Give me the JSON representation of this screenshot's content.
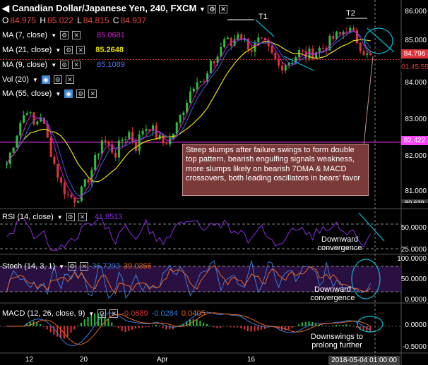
{
  "header": {
    "title": "Canadian Dollar/Japanese Yen, 240, FXCM",
    "open_label": "O",
    "open": "84.975",
    "high_label": "H",
    "high": "85.022",
    "low_label": "L",
    "low": "84.815",
    "close_label": "C",
    "close": "84.937"
  },
  "indicators": [
    {
      "label": "MA (7, close)",
      "value": "85.0681",
      "color": "#d21bd2"
    },
    {
      "label": "MA (21, close)",
      "value": "85.2648",
      "color": "#e8e000"
    },
    {
      "label": "MA (9, close)",
      "value": "85.1089",
      "color": "#3b5fd9"
    },
    {
      "label": "Vol (20)",
      "value": ""
    },
    {
      "label": "MA (55, close)",
      "value": ""
    }
  ],
  "annotations": {
    "t1": "T1",
    "t2": "T2",
    "note": "Steep slumps after failure swings to form double top pattern, bearish engulfing signals weakness, more slumps likely on bearish 7DMA & MACD crossovers, both leading oscillators in bears' favor",
    "rsi_note": "Downward convergence",
    "stoch_note": "Downward convergence",
    "macd_note": "Downswings to prolong further"
  },
  "price_axis": {
    "ticks": [
      "86.000",
      "85.000",
      "84.000",
      "83.000",
      "82.000",
      "81.000"
    ],
    "last_price": "84.796",
    "countdown": "01:45:55",
    "level_price": "82.422",
    "bottom_partial": "80.639"
  },
  "rsi": {
    "label": "RSI (14, close)",
    "value": "41.8513",
    "ticks": [
      "50.0000",
      "25.0000"
    ]
  },
  "stoch": {
    "label": "Stoch (14, 3, 1)",
    "value_k": "36.7293",
    "value_d": "39.0366",
    "ticks": [
      "100.0000",
      "50.0000",
      "0.0000"
    ]
  },
  "macd": {
    "label": "MACD (12, 26, close, 9)",
    "value_1": "-0.0689",
    "value_2": "-0.0284",
    "value_3": "0.0405",
    "ticks": [
      "0.0000",
      "-0.5000"
    ]
  },
  "x_axis": {
    "ticks": [
      "12",
      "20",
      "Apr",
      "16"
    ],
    "cursor_time": "2018-05-04 01:00:00"
  },
  "colors": {
    "up": "#2bbf3e",
    "down": "#e0343a",
    "ma7": "#d21bd2",
    "ma21": "#e8e000",
    "ma9": "#3b5fd9",
    "rsi": "#8a2be2",
    "stoch_k": "#3b7bd9",
    "stoch_d": "#e8661a",
    "macd": "#3b7bd9",
    "signal": "#e8661a",
    "level": "#ff40ff",
    "arrow": "#00bcd4"
  },
  "chart_data": {
    "type": "line",
    "title": "Canadian Dollar/Japanese Yen, 240, FXCM",
    "x_ticks": [
      "12",
      "20",
      "Apr",
      "16"
    ],
    "price_ticks": [
      86,
      85,
      84,
      83,
      82,
      81
    ],
    "ylim": [
      80.64,
      86.3
    ],
    "level_line": 82.422,
    "last_price": 84.796,
    "close_path": [
      81.8,
      82.4,
      83.0,
      83.4,
      82.9,
      83.2,
      82.5,
      81.8,
      81.2,
      80.9,
      80.8,
      81.0,
      81.4,
      81.9,
      82.5,
      82.3,
      82.1,
      82.5,
      82.7,
      82.3,
      82.8,
      82.9,
      82.6,
      82.4,
      82.5,
      82.9,
      83.4,
      83.9,
      84.3,
      84.1,
      84.6,
      84.9,
      85.4,
      85.2,
      85.6,
      85.3,
      85.1,
      85.3,
      85.2,
      84.9,
      84.6,
      84.7,
      84.8,
      85.0,
      84.9,
      85.0,
      85.1,
      85.2,
      85.4,
      85.5,
      85.7,
      85.5,
      85.2,
      84.9,
      84.8
    ],
    "rsi_ticks": [
      50,
      25
    ],
    "stoch_ticks": [
      100,
      50,
      0
    ],
    "macd_ticks": [
      0,
      -0.5
    ]
  }
}
